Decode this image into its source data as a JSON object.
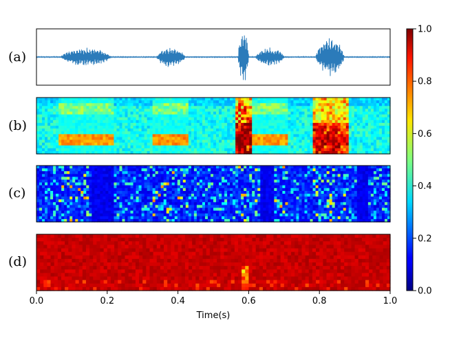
{
  "chart_data": {
    "type": "heatmap",
    "panels": [
      {
        "label": "(a)",
        "kind": "waveform",
        "color": "#2b7bba"
      },
      {
        "label": "(b)",
        "kind": "spectrogram"
      },
      {
        "label": "(c)",
        "kind": "sparse-heatmap"
      },
      {
        "label": "(d)",
        "kind": "saturated-heatmap"
      }
    ],
    "xlabel": "Time(s)",
    "xlim": [
      0.0,
      1.0
    ],
    "xticks": [
      "0.0",
      "0.2",
      "0.4",
      "0.6",
      "0.8",
      "1.0"
    ],
    "colorbar": {
      "colormap": "jet",
      "range": [
        0.0,
        1.0
      ],
      "ticks": [
        "0.0",
        "0.2",
        "0.4",
        "0.6",
        "0.8",
        "1.0"
      ]
    },
    "waveform_segments": [
      {
        "t_start": 0.07,
        "t_end": 0.21,
        "amplitude": 0.35
      },
      {
        "t_start": 0.34,
        "t_end": 0.42,
        "amplitude": 0.38
      },
      {
        "t_start": 0.57,
        "t_end": 0.6,
        "amplitude": 1.0
      },
      {
        "t_start": 0.62,
        "t_end": 0.7,
        "amplitude": 0.35
      },
      {
        "t_start": 0.79,
        "t_end": 0.87,
        "amplitude": 0.7
      }
    ]
  }
}
